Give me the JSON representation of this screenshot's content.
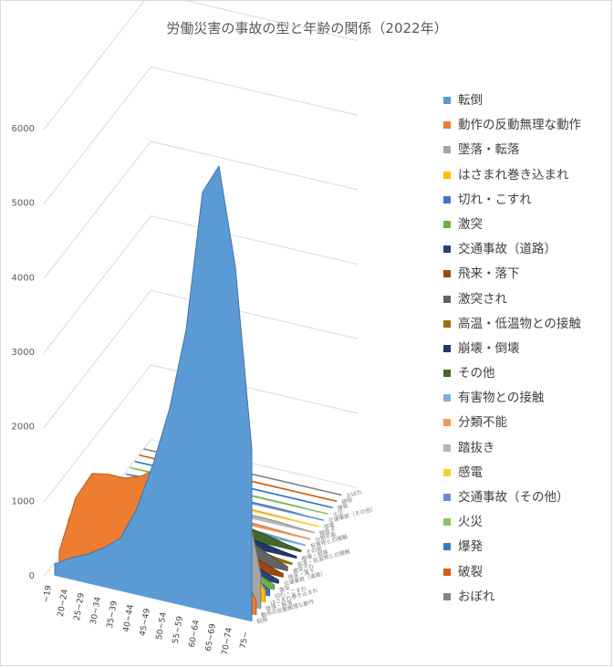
{
  "chart_data": {
    "type": "area",
    "title": "労働災害の事故の型と年齢の関係（2022年）",
    "xlabel": "",
    "ylabel": "",
    "ylim": [
      0,
      6000
    ],
    "yticks": [
      0,
      1000,
      2000,
      3000,
      4000,
      5000,
      6000
    ],
    "categories": [
      "~19",
      "20~24",
      "25~29",
      "30~34",
      "35~39",
      "40~44",
      "45~49",
      "50~54",
      "55~59",
      "60~64",
      "65~69",
      "70~74",
      "75~"
    ],
    "grid": true,
    "legend_position": "right",
    "series": [
      {
        "name": "転倒",
        "color": "#5b9bd5",
        "values": [
          150,
          280,
          380,
          520,
          700,
          1150,
          1800,
          2600,
          3700,
          5600,
          6000,
          4700,
          2300
        ]
      },
      {
        "name": "動作の反動無理な動作",
        "color": "#ed7d31",
        "values": [
          230,
          1000,
          1380,
          1420,
          1420,
          1500,
          1650,
          1860,
          1850,
          1680,
          1160,
          560,
          190
        ]
      },
      {
        "name": "墜落・転落",
        "color": "#a5a5a5",
        "values": [
          250,
          380,
          460,
          560,
          690,
          950,
          1280,
          1700,
          2200,
          2700,
          2750,
          1500,
          460
        ]
      },
      {
        "name": "はさまれ巻き込まれ",
        "color": "#ffc000",
        "values": [
          480,
          1000,
          930,
          820,
          830,
          930,
          1110,
          1250,
          1300,
          1170,
          950,
          520,
          150
        ]
      },
      {
        "name": "切れ・こすれ",
        "color": "#4472c4",
        "values": [
          350,
          810,
          600,
          500,
          440,
          450,
          520,
          560,
          540,
          470,
          370,
          200,
          80
        ]
      },
      {
        "name": "激突",
        "color": "#70ad47",
        "values": [
          100,
          210,
          220,
          220,
          250,
          330,
          420,
          480,
          470,
          400,
          300,
          160,
          60
        ]
      },
      {
        "name": "交通事故（道路）",
        "color": "#264478",
        "values": [
          40,
          260,
          240,
          230,
          240,
          280,
          330,
          380,
          370,
          320,
          230,
          120,
          40
        ]
      },
      {
        "name": "飛来・落下",
        "color": "#9e480e",
        "values": [
          80,
          300,
          290,
          270,
          260,
          280,
          310,
          330,
          320,
          270,
          200,
          110,
          40
        ]
      },
      {
        "name": "激突され",
        "color": "#636363",
        "values": [
          90,
          280,
          270,
          240,
          250,
          280,
          330,
          370,
          370,
          330,
          250,
          140,
          50
        ]
      },
      {
        "name": "高温・低温物との接触",
        "color": "#997300",
        "values": [
          60,
          400,
          300,
          230,
          190,
          180,
          190,
          190,
          160,
          120,
          80,
          40,
          15
        ]
      },
      {
        "name": "崩壊・倒壊",
        "color": "#203864",
        "values": [
          10,
          60,
          70,
          70,
          80,
          90,
          110,
          130,
          130,
          120,
          90,
          50,
          20
        ]
      },
      {
        "name": "その他",
        "color": "#43682b",
        "values": [
          10,
          50,
          80,
          90,
          100,
          120,
          150,
          170,
          170,
          150,
          110,
          60,
          20
        ]
      },
      {
        "name": "有害物との接触",
        "color": "#7cafdd",
        "values": [
          5,
          40,
          40,
          40,
          40,
          40,
          45,
          50,
          45,
          40,
          30,
          15,
          5
        ]
      },
      {
        "name": "分類不能",
        "color": "#f1975a",
        "values": [
          5,
          20,
          25,
          25,
          25,
          25,
          30,
          30,
          30,
          30,
          20,
          10,
          5
        ]
      },
      {
        "name": "踏抜き",
        "color": "#b7b7b7",
        "values": [
          5,
          15,
          20,
          20,
          20,
          25,
          30,
          35,
          40,
          40,
          30,
          15,
          5
        ]
      },
      {
        "name": "感電",
        "color": "#ffcd33",
        "values": [
          5,
          15,
          15,
          15,
          15,
          15,
          15,
          15,
          15,
          15,
          10,
          5,
          2
        ]
      },
      {
        "name": "交通事故（その他）",
        "color": "#698ed0",
        "values": [
          5,
          15,
          15,
          15,
          15,
          15,
          15,
          20,
          20,
          20,
          15,
          5,
          2
        ]
      },
      {
        "name": "火災",
        "color": "#8cc168",
        "values": [
          2,
          8,
          8,
          8,
          8,
          8,
          10,
          10,
          10,
          10,
          8,
          4,
          2
        ]
      },
      {
        "name": "爆発",
        "color": "#327dc2",
        "values": [
          2,
          5,
          5,
          5,
          5,
          5,
          5,
          5,
          5,
          5,
          5,
          2,
          1
        ]
      },
      {
        "name": "破裂",
        "color": "#d26012",
        "values": [
          2,
          5,
          5,
          5,
          5,
          5,
          5,
          5,
          5,
          5,
          3,
          2,
          1
        ]
      },
      {
        "name": "おぼれ",
        "color": "#848484",
        "values": [
          1,
          2,
          2,
          2,
          2,
          2,
          2,
          3,
          3,
          3,
          2,
          1,
          1
        ]
      }
    ]
  }
}
